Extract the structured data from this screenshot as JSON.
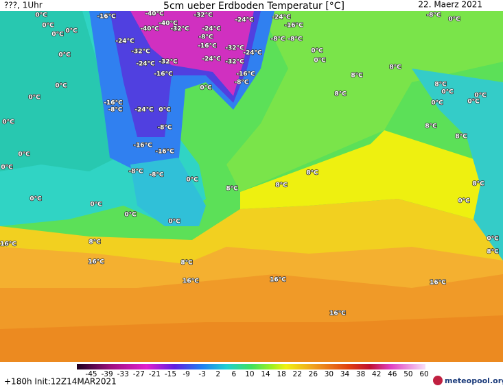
{
  "header": {
    "run": "???, 1Uhr",
    "title": "5cm ueber Erdboden Temperatur [°C]",
    "date": "22. Maerz 2021"
  },
  "map": {
    "labels": [
      "0°C",
      "-16°C",
      "-40°C",
      "-32°C",
      "-24°C",
      "-8°C",
      "0°C",
      "0°C",
      "0°C",
      "-40°C",
      "-40°C",
      "-32°C",
      "-24°C",
      "-24°C",
      "-16°C",
      "0°C",
      "-8°C",
      "-8°C",
      "-8°C",
      "-24°C",
      "-16°C",
      "-32°C",
      "-24°C",
      "-32°C",
      "0°C",
      "0°C",
      "0°C",
      "-24°C",
      "-32°C",
      "-24°C",
      "-32°C",
      "8°C",
      "-16°C",
      "-16°C",
      "8°C",
      "8°C",
      "0°C",
      "0°C",
      "-8°C",
      "0°C",
      "8°C",
      "0°C",
      "0°C",
      "-16°C",
      "0°C",
      "0°C",
      "-8°C",
      "-24°C",
      "0°C",
      "0°C",
      "8°C",
      "-8°C",
      "8°C",
      "-16°C",
      "-16°C",
      "0°C",
      "0°C",
      "-8°C",
      "-8°C",
      "8°C",
      "0°C",
      "8°C",
      "8°C",
      "8°C",
      "0°C",
      "0°C",
      "0°C",
      "0°C",
      "0°C",
      "0°C",
      "16°C",
      "8°C",
      "8°C",
      "16°C",
      "8°C",
      "16°C",
      "16°C",
      "16°C",
      "16°C"
    ]
  },
  "colorbar": {
    "ticks": [
      -45,
      -39,
      -33,
      -27,
      -21,
      -15,
      -9,
      -3,
      2,
      6,
      10,
      14,
      18,
      22,
      26,
      30,
      34,
      38,
      42,
      46,
      50,
      60
    ]
  },
  "footer": {
    "init": "+180h Init:12Z14MAR2021",
    "logo": "meteopool.org"
  }
}
